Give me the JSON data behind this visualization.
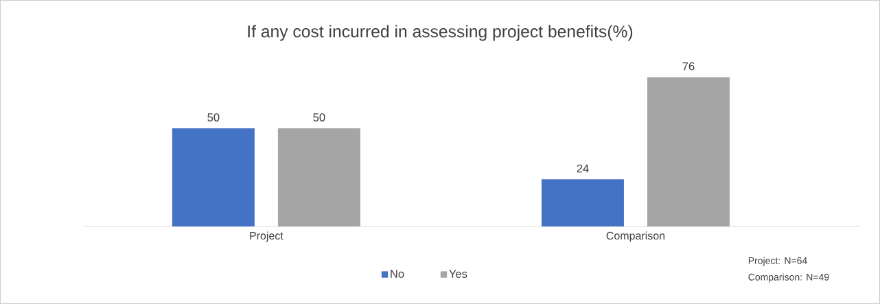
{
  "chart_data": {
    "type": "bar",
    "title": "If any cost incurred in assessing project benefits(%)",
    "categories": [
      "Project",
      "Comparison"
    ],
    "series": [
      {
        "name": "No",
        "color": "#4472c4",
        "values": [
          50,
          24
        ]
      },
      {
        "name": "Yes",
        "color": "#a5a5a5",
        "values": [
          50,
          76
        ]
      }
    ],
    "data_labels": true,
    "legend": "bottom",
    "tick_labels": "x",
    "annotations": [
      "Project: N=64",
      "Comparison: N=49"
    ]
  }
}
